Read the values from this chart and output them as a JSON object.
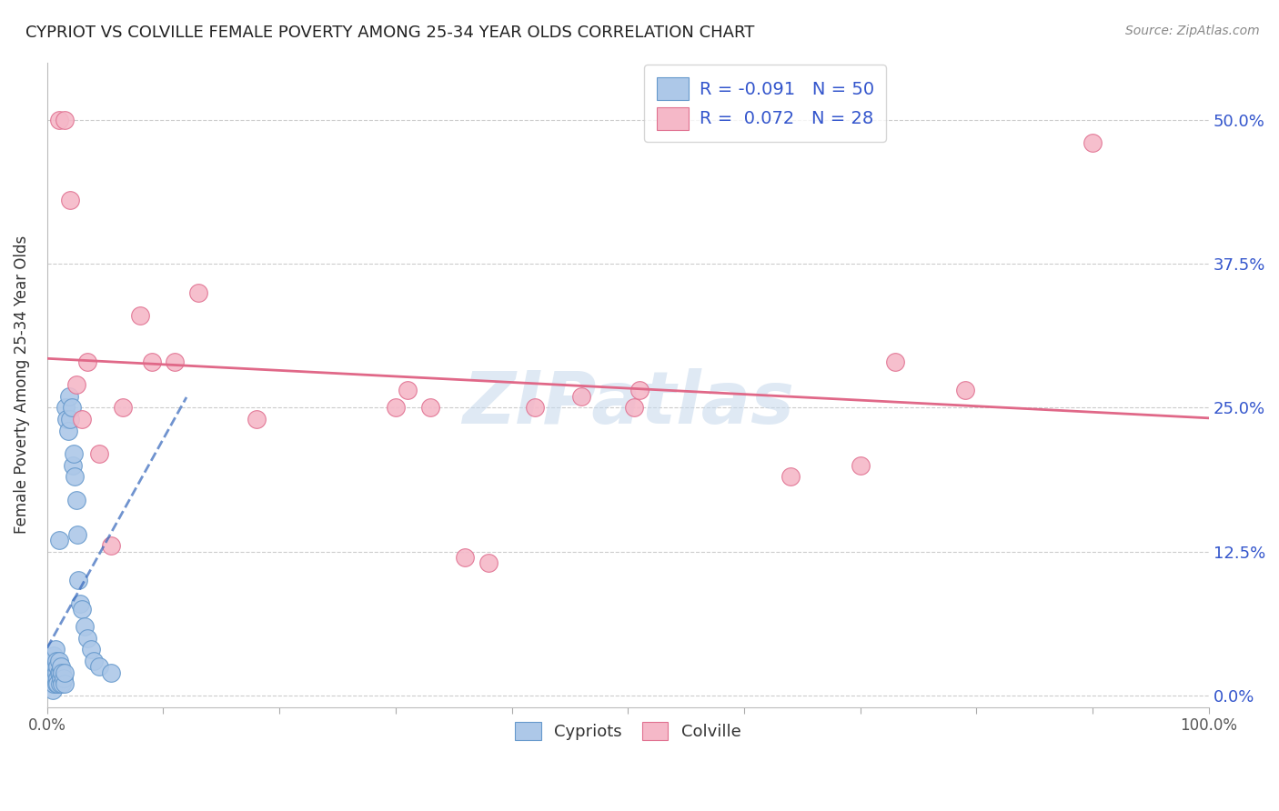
{
  "title": "CYPRIOT VS COLVILLE FEMALE POVERTY AMONG 25-34 YEAR OLDS CORRELATION CHART",
  "source": "Source: ZipAtlas.com",
  "ylabel": "Female Poverty Among 25-34 Year Olds",
  "xlim": [
    0.0,
    1.0
  ],
  "ylim": [
    -0.01,
    0.55
  ],
  "ytick_positions": [
    0.0,
    0.125,
    0.25,
    0.375,
    0.5
  ],
  "ytick_labels_right": [
    "0.0%",
    "12.5%",
    "25.0%",
    "37.5%",
    "50.0%"
  ],
  "cypriot_color": "#adc8e8",
  "colville_color": "#f5b8c8",
  "cypriot_edge": "#6699cc",
  "colville_edge": "#e07090",
  "trend_cypriot_color": "#3366bb",
  "trend_colville_color": "#e06888",
  "R_cypriot": "-0.091",
  "N_cypriot": "50",
  "R_colville": "0.072",
  "N_colville": "28",
  "background_color": "#ffffff",
  "grid_color": "#cccccc",
  "watermark_text": "ZIPatlas",
  "watermark_color": "#c5d8ec",
  "cypriot_x": [
    0.002,
    0.003,
    0.004,
    0.004,
    0.005,
    0.005,
    0.006,
    0.006,
    0.006,
    0.007,
    0.007,
    0.007,
    0.008,
    0.008,
    0.008,
    0.009,
    0.009,
    0.009,
    0.01,
    0.01,
    0.01,
    0.011,
    0.011,
    0.012,
    0.012,
    0.013,
    0.013,
    0.014,
    0.015,
    0.015,
    0.016,
    0.017,
    0.018,
    0.019,
    0.02,
    0.021,
    0.022,
    0.023,
    0.024,
    0.025,
    0.026,
    0.027,
    0.028,
    0.03,
    0.032,
    0.035,
    0.038,
    0.04,
    0.045,
    0.055
  ],
  "cypriot_y": [
    0.02,
    0.015,
    0.01,
    0.025,
    0.005,
    0.03,
    0.01,
    0.02,
    0.035,
    0.015,
    0.025,
    0.04,
    0.01,
    0.02,
    0.03,
    0.015,
    0.025,
    0.01,
    0.02,
    0.03,
    0.135,
    0.01,
    0.02,
    0.015,
    0.025,
    0.01,
    0.02,
    0.015,
    0.01,
    0.02,
    0.25,
    0.24,
    0.23,
    0.26,
    0.24,
    0.25,
    0.2,
    0.21,
    0.19,
    0.17,
    0.14,
    0.1,
    0.08,
    0.075,
    0.06,
    0.05,
    0.04,
    0.03,
    0.025,
    0.02
  ],
  "colville_x": [
    0.01,
    0.015,
    0.02,
    0.025,
    0.03,
    0.035,
    0.045,
    0.055,
    0.065,
    0.08,
    0.09,
    0.11,
    0.13,
    0.18,
    0.3,
    0.31,
    0.33,
    0.36,
    0.38,
    0.42,
    0.46,
    0.505,
    0.51,
    0.64,
    0.7,
    0.73,
    0.79,
    0.9
  ],
  "colville_y": [
    0.5,
    0.5,
    0.43,
    0.27,
    0.24,
    0.29,
    0.21,
    0.13,
    0.25,
    0.33,
    0.29,
    0.29,
    0.35,
    0.24,
    0.25,
    0.265,
    0.25,
    0.12,
    0.115,
    0.25,
    0.26,
    0.25,
    0.265,
    0.19,
    0.2,
    0.29,
    0.265,
    0.48
  ]
}
